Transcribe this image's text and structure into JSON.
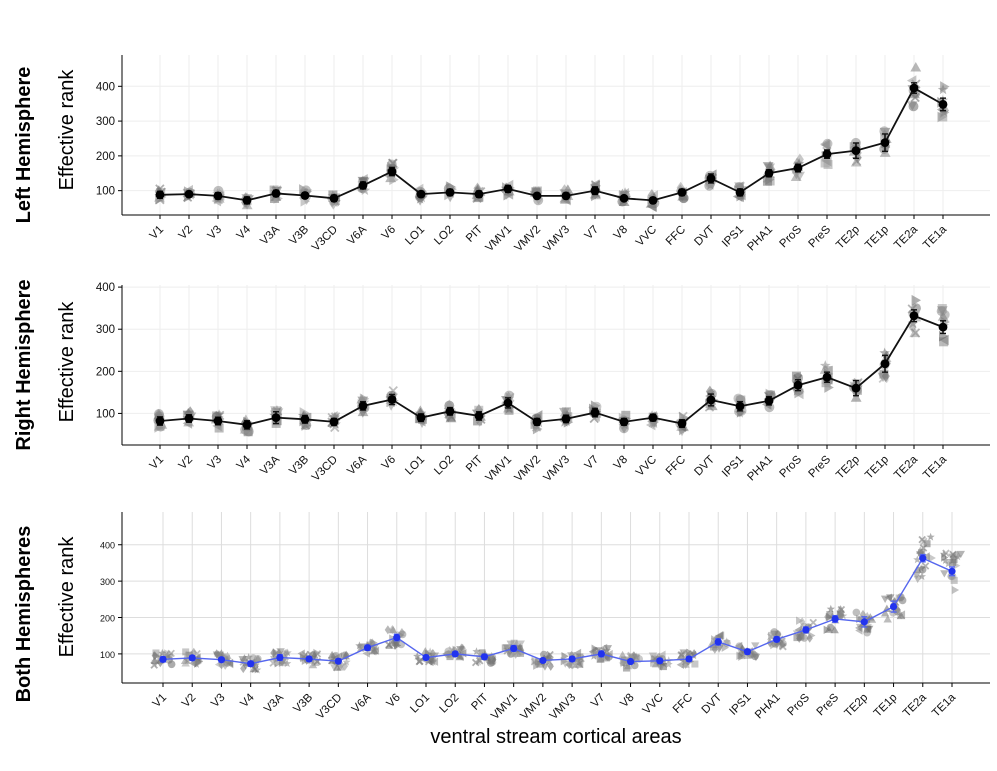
{
  "chart_data": {
    "type": "line",
    "xlabel": "ventral stream cortical areas",
    "ylabel": "Effective rank",
    "categories": [
      "V1",
      "V2",
      "V3",
      "V4",
      "V3A",
      "V3B",
      "V3CD",
      "V6A",
      "V6",
      "LO1",
      "LO2",
      "PIT",
      "VMV1",
      "VMV2",
      "VMV3",
      "V7",
      "V8",
      "VVC",
      "FFC",
      "DVT",
      "IPS1",
      "PHA1",
      "ProS",
      "PreS",
      "TE2p",
      "TE1p",
      "TE2a",
      "TE1a"
    ],
    "panels": [
      {
        "title": "Left Hemisphere",
        "yticks": [
          100,
          200,
          300,
          400
        ],
        "ylim": [
          30,
          490
        ],
        "line_color": "#111111",
        "means": [
          88,
          90,
          85,
          72,
          92,
          86,
          78,
          115,
          155,
          90,
          95,
          90,
          105,
          85,
          85,
          100,
          78,
          72,
          95,
          135,
          95,
          150,
          165,
          205,
          215,
          238,
          395,
          348
        ],
        "errors": [
          10,
          8,
          9,
          10,
          9,
          8,
          9,
          10,
          12,
          8,
          9,
          9,
          10,
          7,
          8,
          11,
          7,
          8,
          9,
          13,
          10,
          10,
          11,
          12,
          22,
          25,
          15,
          18
        ]
      },
      {
        "title": "Right Hemisphere",
        "yticks": [
          100,
          200,
          300,
          400
        ],
        "ylim": [
          25,
          405
        ],
        "line_color": "#111111",
        "means": [
          82,
          88,
          82,
          73,
          90,
          86,
          80,
          118,
          133,
          90,
          105,
          94,
          125,
          80,
          87,
          102,
          80,
          90,
          76,
          132,
          117,
          130,
          167,
          186,
          160,
          218,
          332,
          305
        ],
        "errors": [
          10,
          9,
          9,
          10,
          14,
          9,
          8,
          10,
          12,
          9,
          9,
          10,
          12,
          8,
          9,
          10,
          8,
          8,
          9,
          14,
          11,
          10,
          13,
          12,
          18,
          20,
          14,
          15
        ]
      },
      {
        "title": "Both Hemispheres",
        "yticks": [
          100,
          200,
          300,
          400
        ],
        "ylim": [
          20,
          490
        ],
        "line_color": "#5566ee",
        "means": [
          85,
          89,
          84,
          73,
          90,
          86,
          80,
          117,
          145,
          90,
          100,
          92,
          115,
          82,
          86,
          100,
          79,
          81,
          86,
          133,
          106,
          140,
          166,
          196,
          188,
          230,
          363,
          327
        ],
        "errors": [
          7,
          6,
          6,
          7,
          8,
          6,
          6,
          7,
          9,
          6,
          6,
          7,
          8,
          5,
          6,
          8,
          5,
          6,
          6,
          9,
          7,
          7,
          8,
          9,
          14,
          15,
          10,
          12
        ]
      }
    ],
    "legend": "none",
    "grid": true
  }
}
